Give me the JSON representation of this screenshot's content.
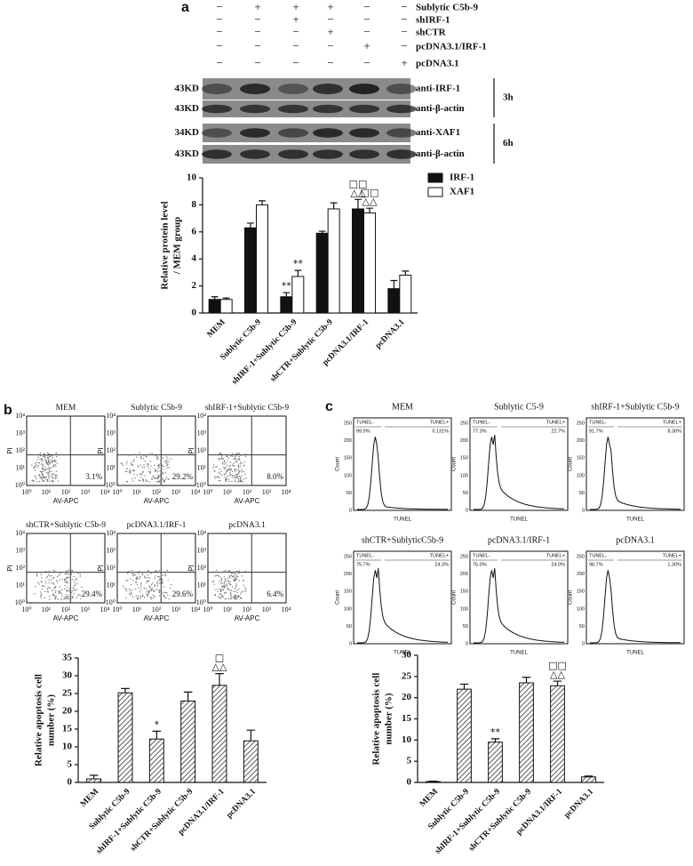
{
  "panel_a": {
    "label": "a",
    "treatments": [
      {
        "name": "Sublytic C5b-9",
        "signs": [
          "−",
          "+",
          "+",
          "+",
          "−",
          "−"
        ]
      },
      {
        "name": "shIRF-1",
        "signs": [
          "−",
          "−",
          "+",
          "−",
          "−",
          "−"
        ]
      },
      {
        "name": "shCTR",
        "signs": [
          "−",
          "−",
          "−",
          "+",
          "−",
          "−"
        ]
      },
      {
        "name": "pcDNA3.1/IRF-1",
        "signs": [
          "−",
          "−",
          "−",
          "−",
          "+",
          "−"
        ]
      },
      {
        "name": "pcDNA3.1",
        "signs": [
          "−",
          "−",
          "−",
          "−",
          "−",
          "+"
        ]
      }
    ],
    "blots": [
      {
        "size": "43KD",
        "antibody": "anti-IRF-1"
      },
      {
        "size": "43KD",
        "antibody": "anti-β-actin"
      },
      {
        "size": "34KD",
        "antibody": "anti-XAF1"
      },
      {
        "size": "43KD",
        "antibody": "anti-β-actin"
      }
    ],
    "times": [
      "3h",
      "6h"
    ]
  },
  "panel_b": {
    "label": "b",
    "x_label": "AV-APC",
    "y_label": "PI",
    "ticks": [
      "10⁰",
      "10¹",
      "10²",
      "10³",
      "10⁴"
    ],
    "plots": [
      {
        "title": "MEM",
        "percent": "3.1%"
      },
      {
        "title": "Sublytic C5b-9",
        "percent": "29.2%"
      },
      {
        "title": "shIRF-1+Sublytic C5b-9",
        "percent": "8.0%"
      },
      {
        "title": "shCTR+Sublytic C5b-9",
        "percent": "29.4%"
      },
      {
        "title": "pcDNA3.1/IRF-1",
        "percent": "29.6%"
      },
      {
        "title": "pcDNA3.1",
        "percent": "6.4%"
      }
    ]
  },
  "panel_c": {
    "label": "c",
    "x_label": "TUNEL",
    "y_label": "Count",
    "yticks": [
      0,
      50,
      100,
      150,
      200,
      250
    ],
    "gates": [
      "TUNEL-",
      "TUNEL+"
    ],
    "plots": [
      {
        "title": "MEM",
        "percents": [
          "99.9%",
          "0.131%"
        ]
      },
      {
        "title": "Sublytic C5-9",
        "percents": [
          "77.3%",
          "22.7%"
        ]
      },
      {
        "title": "shIRF-1+Sublytic C5b-9",
        "percents": [
          "91.7%",
          "8.30%"
        ]
      },
      {
        "title": "shCTR+SublyticC5b-9",
        "percents": [
          "75.7%",
          "24.3%"
        ]
      },
      {
        "title": "pcDNA3.1/IRF-1",
        "percents": [
          "76.0%",
          "24.0%"
        ]
      },
      {
        "title": "pcDNA3.1",
        "percents": [
          "98.7%",
          "1.30%"
        ]
      }
    ]
  },
  "chart_data": [
    {
      "type": "bar",
      "y_label": [
        "Relative protein level",
        "/ MEM group"
      ],
      "categories": [
        "MEM",
        "Sublytic C5b-9",
        "shIRF-1+Sublytic C5b-9",
        "shCTR+Sublytic C5b-9",
        "pcDNA3.1/IRF-1",
        "pcDNA3.1"
      ],
      "series": [
        {
          "name": "IRF-1",
          "color": "#111111",
          "values": [
            1.0,
            6.3,
            1.2,
            5.9,
            7.7,
            1.8
          ],
          "errors": [
            0.2,
            0.35,
            0.3,
            0.15,
            0.7,
            0.6
          ],
          "annotations": [
            null,
            null,
            [
              "**"
            ],
            null,
            [
              "□□",
              "△△"
            ],
            null
          ]
        },
        {
          "name": "XAF1",
          "color": "#ffffff",
          "values": [
            1.0,
            8.0,
            2.7,
            7.7,
            7.4,
            2.8
          ],
          "errors": [
            0.1,
            0.3,
            0.45,
            0.45,
            0.35,
            0.3
          ],
          "annotations": [
            null,
            null,
            [
              "**"
            ],
            null,
            [
              "□□",
              "△△"
            ],
            null
          ]
        }
      ],
      "ylim": [
        0,
        10
      ],
      "yticks": [
        0,
        2,
        4,
        6,
        8,
        10
      ],
      "hatch": false,
      "legend": "right"
    },
    {
      "type": "bar",
      "y_label": [
        "Relative apoptosis cell",
        "number (%)"
      ],
      "categories": [
        "MEM",
        "Sublytic C5b-9",
        "shIRF-1+Sublytic C5b-9",
        "shCTR+Sublytic C5b-9",
        "pcDNA3.1/IRF-1",
        "pcDNA3.1"
      ],
      "series": [
        {
          "color": "#ffffff",
          "values": [
            1.0,
            25.2,
            12.2,
            22.9,
            27.3,
            11.7
          ],
          "errors": [
            1.0,
            1.2,
            2.2,
            2.5,
            3.3,
            3.0
          ],
          "annotations": [
            null,
            null,
            [
              "*"
            ],
            null,
            [
              "□",
              "△△"
            ],
            null
          ]
        }
      ],
      "ylim": [
        0,
        35
      ],
      "yticks": [
        0,
        5,
        10,
        15,
        20,
        25,
        30,
        35
      ],
      "hatch": true
    },
    {
      "type": "bar",
      "y_label": [
        "Relative apoptosis cell",
        "number (%)"
      ],
      "categories": [
        "MEM",
        "Sublytic C5b-9",
        "shIRF-1+Sublytic C5b-9",
        "shCTR+Sublytic C5b-9",
        "pcDNA3.1/IRF-1",
        "pcDNA3.1"
      ],
      "series": [
        {
          "color": "#ffffff",
          "values": [
            0.2,
            22.0,
            9.5,
            23.5,
            22.8,
            1.3
          ],
          "errors": [
            0.1,
            1.2,
            0.8,
            1.3,
            1.1,
            0.2
          ],
          "annotations": [
            null,
            null,
            [
              "**"
            ],
            null,
            [
              "□□",
              "△△"
            ],
            null
          ]
        }
      ],
      "ylim": [
        0,
        30
      ],
      "yticks": [
        0,
        5,
        10,
        15,
        20,
        25,
        30
      ],
      "hatch": true
    }
  ]
}
